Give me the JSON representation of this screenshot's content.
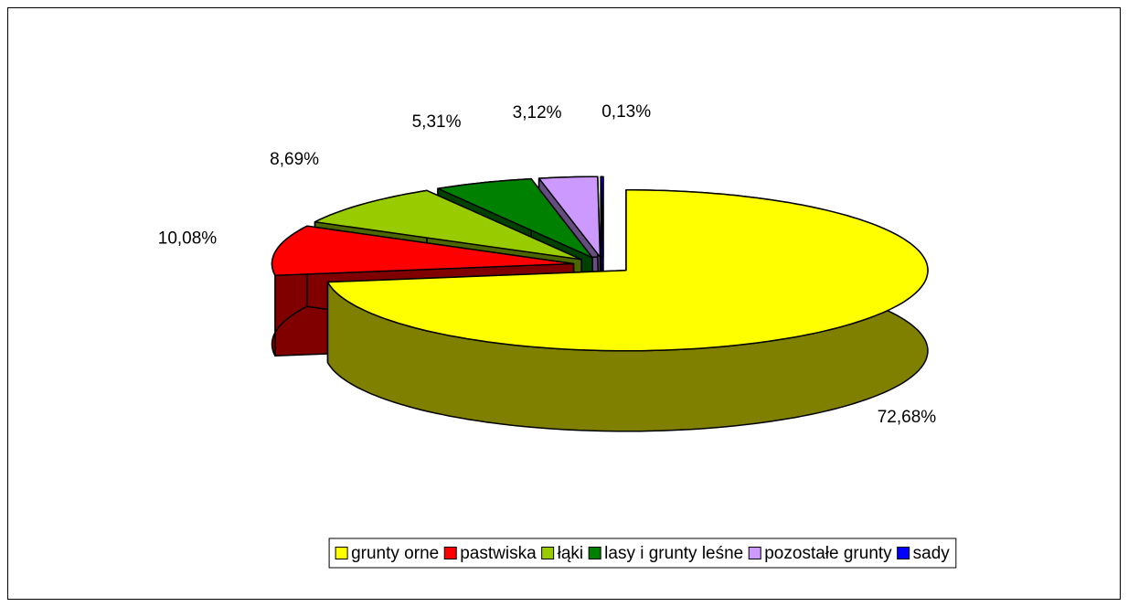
{
  "chart_data": {
    "type": "pie3d",
    "categories": [
      "grunty orne",
      "pastwiska",
      "łąki",
      "lasy i grunty leśne",
      "pozostałe grunty",
      "sady"
    ],
    "values": [
      72.68,
      10.08,
      8.69,
      5.31,
      3.12,
      0.13
    ],
    "value_labels": [
      "72,68%",
      "10,08%",
      "8,69%",
      "5,31%",
      "3,12%",
      "0,13%"
    ],
    "colors": [
      "#ffff00",
      "#ff0000",
      "#99cc00",
      "#008000",
      "#cc99ff",
      "#0000ff"
    ],
    "legend": "bottom"
  }
}
